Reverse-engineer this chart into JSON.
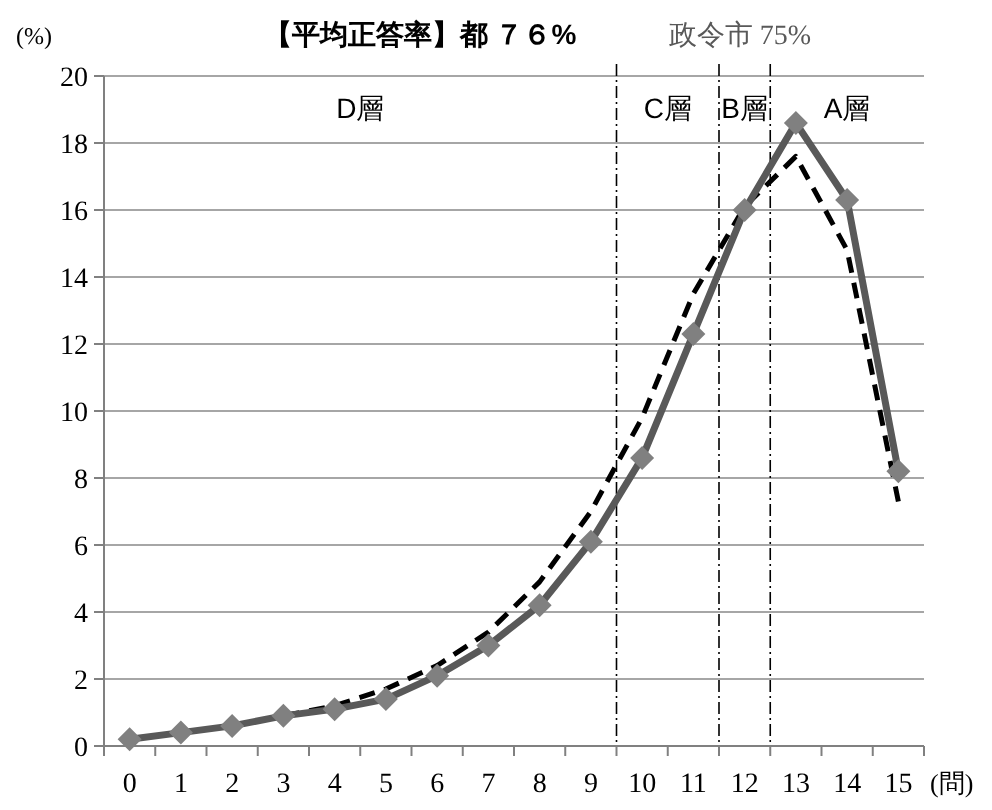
{
  "chart_data": {
    "type": "line",
    "title": "【平均正答率】都 ７６%",
    "subtitle": "政令市 75%",
    "ylabel": "(%)",
    "xlabel": "(問)",
    "categories": [
      "0",
      "1",
      "2",
      "3",
      "4",
      "5",
      "6",
      "7",
      "8",
      "9",
      "10",
      "11",
      "12",
      "13",
      "14",
      "15"
    ],
    "series": [
      {
        "color": "#595959",
        "marker": "diamond",
        "line_style": "solid",
        "values": [
          0.2,
          0.4,
          0.6,
          0.9,
          1.1,
          1.4,
          2.1,
          3.0,
          4.2,
          6.1,
          8.6,
          12.3,
          16.0,
          18.6,
          16.3,
          8.2
        ]
      },
      {
        "color": "#000000",
        "marker": "none",
        "line_style": "dashed",
        "values": [
          0.2,
          0.4,
          0.6,
          0.9,
          1.2,
          1.7,
          2.4,
          3.4,
          4.9,
          7.0,
          9.8,
          13.5,
          16.1,
          17.6,
          14.8,
          7.3
        ]
      }
    ],
    "ylim": [
      0,
      20
    ],
    "yticks": [
      0,
      2,
      4,
      6,
      8,
      10,
      12,
      14,
      16,
      18,
      20
    ],
    "grid": "y",
    "annotations": [
      "D層",
      "C層",
      "B層",
      "A層"
    ]
  }
}
